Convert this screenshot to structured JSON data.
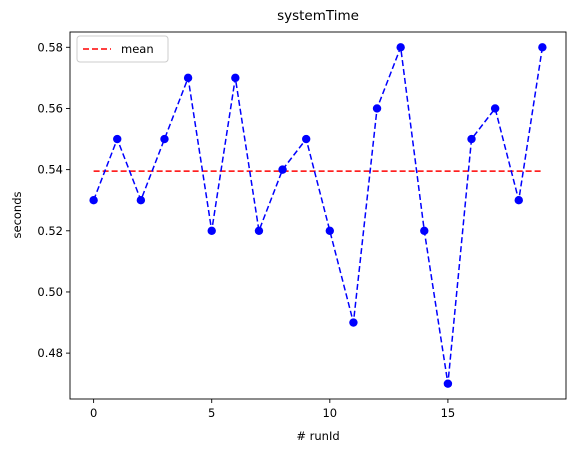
{
  "chart_data": {
    "type": "line",
    "title": "systemTime",
    "xlabel": "# runId",
    "ylabel": "seconds",
    "xlim": [
      -1,
      20
    ],
    "ylim": [
      0.465,
      0.585
    ],
    "x_ticks": [
      0,
      5,
      10,
      15
    ],
    "x_tick_labels": [
      "0",
      "5",
      "10",
      "15"
    ],
    "y_ticks": [
      0.48,
      0.5,
      0.52,
      0.54,
      0.56,
      0.58
    ],
    "y_tick_labels": [
      "0.48",
      "0.50",
      "0.52",
      "0.54",
      "0.56",
      "0.58"
    ],
    "grid": false,
    "legend_position": "top-left",
    "x": [
      0,
      1,
      2,
      3,
      4,
      5,
      6,
      7,
      8,
      9,
      10,
      11,
      12,
      13,
      14,
      15,
      16,
      17,
      18,
      19
    ],
    "series": [
      {
        "values": [
          0.53,
          0.55,
          0.53,
          0.55,
          0.57,
          0.52,
          0.57,
          0.52,
          0.54,
          0.55,
          0.52,
          0.49,
          0.56,
          0.58,
          0.52,
          0.47,
          0.55,
          0.56,
          0.53,
          0.58
        ],
        "color": "#0000ff",
        "style": "dashed-with-markers"
      }
    ],
    "mean_line": {
      "name": "mean",
      "value": 0.5395,
      "x_range": [
        0,
        19
      ],
      "color": "#ff0000",
      "style": "dashed"
    }
  }
}
